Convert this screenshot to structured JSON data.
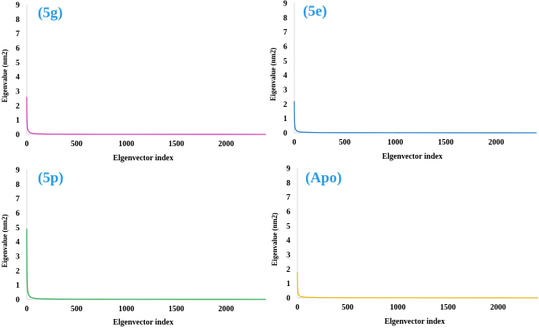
{
  "title_color": "#2e9be6",
  "chart_data": [
    {
      "type": "line",
      "title": "(5g)",
      "xlabel": "Elgenvector  index",
      "ylabel": "Eigenvalue  (nm2)",
      "xlim": [
        0,
        2400
      ],
      "ylim": [
        0,
        9
      ],
      "xticks": [
        0,
        500,
        1000,
        1500,
        2000
      ],
      "yticks": [
        0,
        1,
        2,
        3,
        4,
        5,
        6,
        7,
        8,
        9
      ],
      "grid": false,
      "color": "#d63fb4",
      "series": [
        {
          "x": [
            0,
            1,
            2,
            3,
            5,
            8,
            12,
            18,
            25,
            35,
            50,
            70,
            100,
            150,
            200,
            300,
            500,
            1000,
            2000,
            2400
          ],
          "values": [
            2.6,
            1.7,
            1.2,
            0.9,
            0.6,
            0.42,
            0.3,
            0.22,
            0.16,
            0.11,
            0.08,
            0.06,
            0.04,
            0.03,
            0.02,
            0.015,
            0.01,
            0.005,
            0.002,
            0.001
          ]
        }
      ]
    },
    {
      "type": "line",
      "title": "(5e)",
      "xlabel": "Elgenvector  index",
      "ylabel": "Eigenvalue  (nm2)",
      "xlim": [
        0,
        2400
      ],
      "ylim": [
        0,
        9
      ],
      "xticks": [
        0,
        500,
        1000,
        1500,
        2000
      ],
      "yticks": [
        0,
        1,
        2,
        3,
        4,
        5,
        6,
        7,
        8,
        9
      ],
      "grid": false,
      "color": "#2a7fc9",
      "series": [
        {
          "x": [
            0,
            1,
            2,
            3,
            5,
            8,
            12,
            18,
            25,
            35,
            50,
            70,
            100,
            150,
            200,
            300,
            500,
            1000,
            2000,
            2400
          ],
          "values": [
            2.2,
            1.4,
            1.0,
            0.75,
            0.5,
            0.35,
            0.25,
            0.18,
            0.13,
            0.1,
            0.07,
            0.05,
            0.04,
            0.03,
            0.02,
            0.015,
            0.01,
            0.005,
            0.002,
            0.001
          ]
        }
      ]
    },
    {
      "type": "line",
      "title": "(5p)",
      "xlabel": "Elgenvector  index",
      "ylabel": "Eigenvalue  (nm2)",
      "xlim": [
        0,
        2400
      ],
      "ylim": [
        0,
        9
      ],
      "xticks": [
        0,
        500,
        1000,
        1500,
        2000
      ],
      "yticks": [
        0,
        1,
        2,
        3,
        4,
        5,
        6,
        7,
        8,
        9
      ],
      "grid": false,
      "color": "#2fae52",
      "series": [
        {
          "x": [
            0,
            1,
            2,
            3,
            5,
            8,
            12,
            18,
            25,
            35,
            50,
            70,
            100,
            150,
            200,
            300,
            500,
            1000,
            2000,
            2400
          ],
          "values": [
            4.9,
            3.2,
            2.2,
            1.6,
            1.05,
            0.7,
            0.48,
            0.33,
            0.24,
            0.17,
            0.12,
            0.09,
            0.06,
            0.04,
            0.03,
            0.02,
            0.012,
            0.006,
            0.002,
            0.001
          ]
        }
      ]
    },
    {
      "type": "line",
      "title": "(Apo)",
      "xlabel": "Elgenvector  index",
      "ylabel": "Eigenvalue  (nm2)",
      "xlim": [
        0,
        2400
      ],
      "ylim": [
        0,
        9
      ],
      "xticks": [
        0,
        500,
        1000,
        1500,
        2000
      ],
      "yticks": [
        0,
        1,
        2,
        3,
        4,
        5,
        6,
        7,
        8,
        9
      ],
      "grid": false,
      "color": "#e8b81a",
      "series": [
        {
          "x": [
            0,
            1,
            2,
            3,
            5,
            8,
            12,
            18,
            25,
            35,
            50,
            70,
            100,
            150,
            200,
            300,
            500,
            1000,
            2000,
            2400
          ],
          "values": [
            1.8,
            1.15,
            0.8,
            0.6,
            0.42,
            0.3,
            0.22,
            0.16,
            0.12,
            0.09,
            0.07,
            0.05,
            0.04,
            0.03,
            0.02,
            0.015,
            0.01,
            0.005,
            0.002,
            0.001
          ]
        }
      ]
    }
  ]
}
